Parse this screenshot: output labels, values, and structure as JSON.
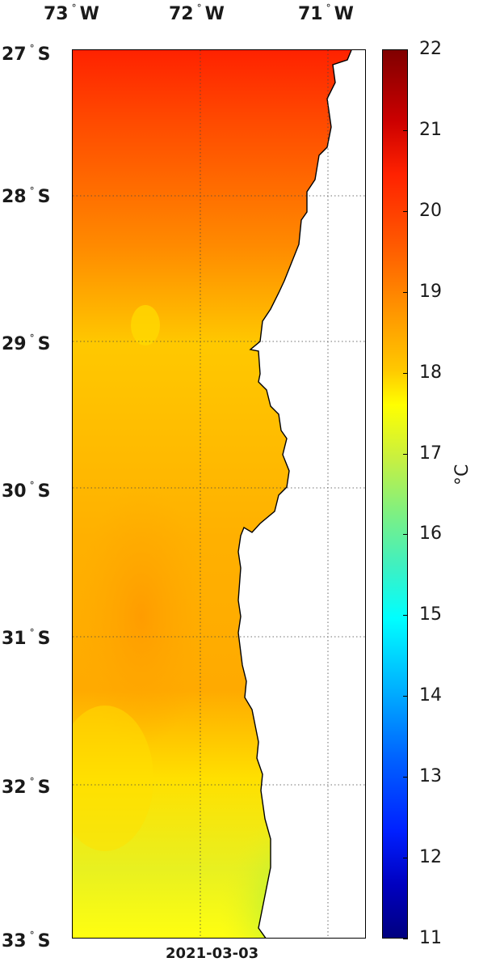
{
  "map": {
    "top_labels": [
      "73",
      "72",
      "71"
    ],
    "top_suffix": "W",
    "left_labels": [
      "27",
      "28",
      "29",
      "30",
      "31",
      "32",
      "33"
    ],
    "left_suffix": "S",
    "date": "2021-03-03"
  },
  "colorbar": {
    "ticks": [
      "22",
      "21",
      "20",
      "19",
      "18",
      "17",
      "16",
      "15",
      "14",
      "13",
      "12",
      "11"
    ],
    "unit": "C",
    "unit_degree": "°",
    "range": [
      11,
      22
    ],
    "colors": [
      "#800000",
      "#cc0000",
      "#ff2200",
      "#ff7700",
      "#ffbb00",
      "#ffff00",
      "#bfff40",
      "#40ffbf",
      "#00ffff",
      "#0080ff",
      "#0000ff",
      "#000080"
    ]
  },
  "field": {
    "north_color": "#ff2a00",
    "mid_color": "#ffb200",
    "south_color": "#e8f020",
    "coastal_cool_color": "#50f0c8",
    "land_color": "#ffffff"
  }
}
